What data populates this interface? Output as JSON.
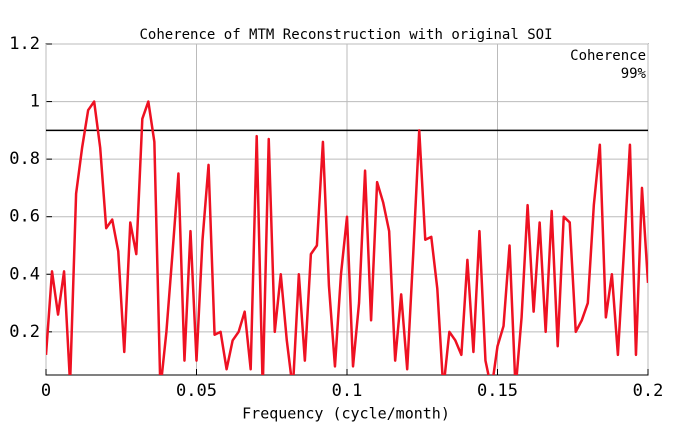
{
  "chart_data": {
    "type": "line",
    "title": "Coherence of MTM Reconstruction with original SOI",
    "xlabel": "Frequency (cycle/month)",
    "x": [
      0,
      0.002,
      0.004,
      0.006,
      0.008,
      0.01,
      0.012,
      0.014,
      0.016,
      0.018,
      0.02,
      0.022,
      0.024,
      0.026,
      0.028,
      0.03,
      0.032,
      0.034,
      0.036,
      0.038,
      0.04,
      0.042,
      0.044,
      0.046,
      0.048,
      0.05,
      0.052,
      0.054,
      0.056,
      0.058,
      0.06,
      0.062,
      0.064,
      0.066,
      0.068,
      0.07,
      0.072,
      0.074,
      0.076,
      0.078,
      0.08,
      0.082,
      0.084,
      0.086,
      0.088,
      0.09,
      0.092,
      0.094,
      0.096,
      0.098,
      0.1,
      0.102,
      0.104,
      0.106,
      0.108,
      0.11,
      0.112,
      0.114,
      0.116,
      0.118,
      0.12,
      0.122,
      0.124,
      0.126,
      0.128,
      0.13,
      0.132,
      0.134,
      0.136,
      0.138,
      0.14,
      0.142,
      0.144,
      0.146,
      0.148,
      0.15,
      0.152,
      0.154,
      0.156,
      0.158,
      0.16,
      0.162,
      0.164,
      0.166,
      0.168,
      0.17,
      0.172,
      0.174,
      0.176,
      0.178,
      0.18,
      0.182,
      0.184,
      0.186,
      0.188,
      0.19,
      0.192,
      0.194,
      0.196,
      0.198,
      0.2
    ],
    "series": [
      {
        "name": "Coherence",
        "color": "#ee1122",
        "values": [
          0.12,
          0.41,
          0.26,
          0.41,
          0.02,
          0.68,
          0.84,
          0.97,
          1.0,
          0.84,
          0.56,
          0.59,
          0.48,
          0.13,
          0.58,
          0.47,
          0.94,
          1.0,
          0.86,
          0.0,
          0.2,
          0.47,
          0.75,
          0.1,
          0.55,
          0.1,
          0.52,
          0.78,
          0.19,
          0.2,
          0.07,
          0.17,
          0.2,
          0.27,
          0.07,
          0.88,
          0.0,
          0.87,
          0.2,
          0.4,
          0.17,
          0.0,
          0.4,
          0.1,
          0.47,
          0.5,
          0.86,
          0.36,
          0.08,
          0.4,
          0.6,
          0.08,
          0.3,
          0.76,
          0.24,
          0.72,
          0.65,
          0.55,
          0.1,
          0.33,
          0.07,
          0.47,
          0.9,
          0.52,
          0.53,
          0.35,
          0.0,
          0.2,
          0.17,
          0.12,
          0.45,
          0.13,
          0.55,
          0.1,
          0.0,
          0.15,
          0.22,
          0.5,
          0.0,
          0.25,
          0.64,
          0.27,
          0.58,
          0.2,
          0.62,
          0.15,
          0.6,
          0.58,
          0.2,
          0.24,
          0.3,
          0.64,
          0.85,
          0.25,
          0.4,
          0.12,
          0.48,
          0.85,
          0.12,
          0.7,
          0.37
        ]
      }
    ],
    "threshold": {
      "name": "99%",
      "value": 0.9,
      "color": "#000000"
    },
    "xlim": [
      0,
      0.2
    ],
    "xticks": [
      0,
      0.05,
      0.1,
      0.15,
      0.2
    ],
    "ylim": [
      0.05,
      1.2
    ],
    "yticks": [
      0.2,
      0.4,
      0.6,
      0.8,
      1,
      1.2
    ],
    "grid": true,
    "legend": "top-right"
  }
}
